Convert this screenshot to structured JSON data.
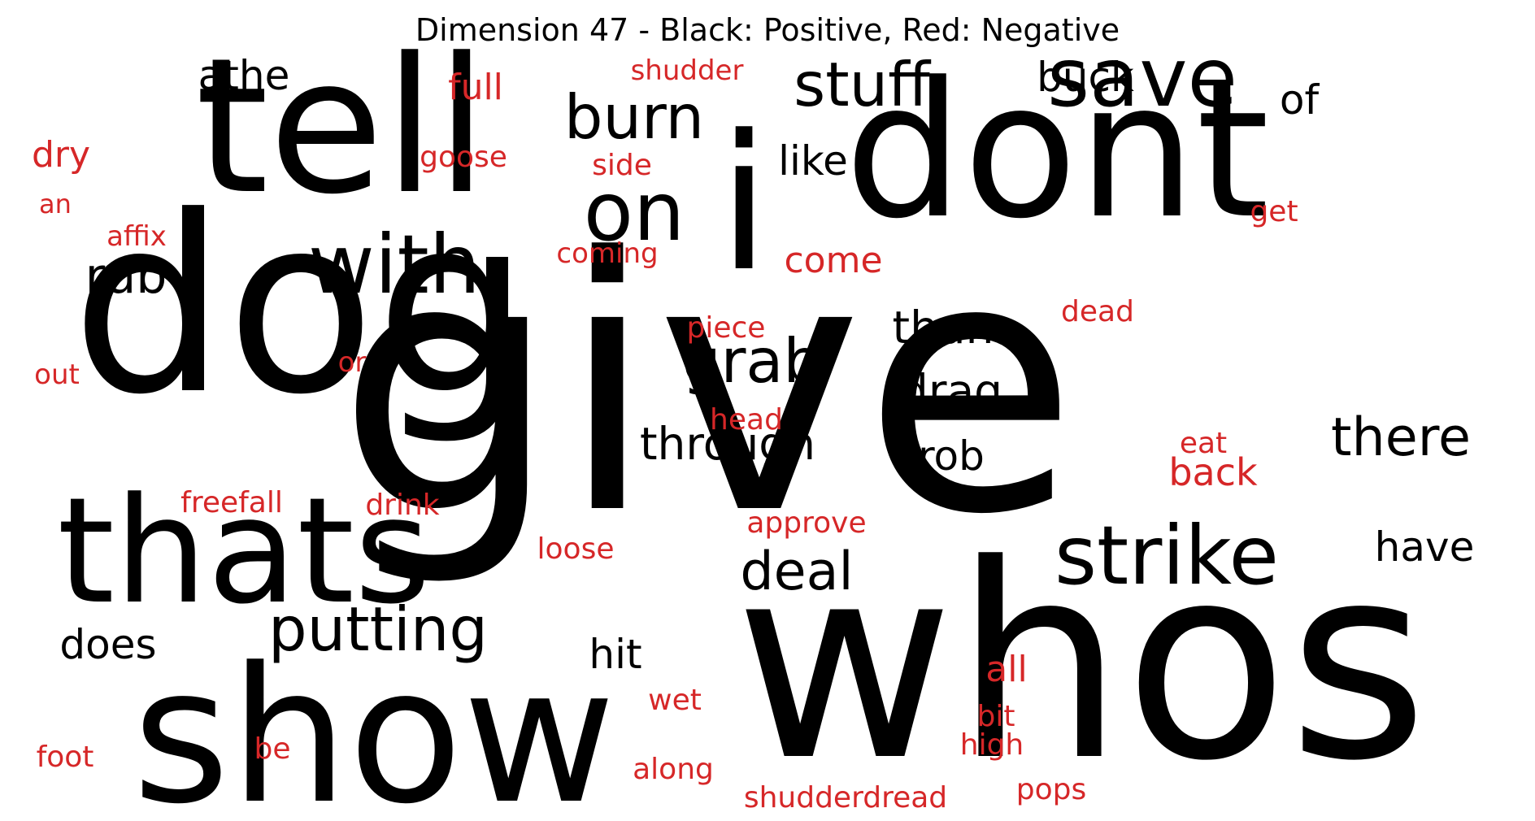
{
  "title": "Dimension 47 - Black: Positive, Red: Negative",
  "colors": {
    "positive": "#000000",
    "negative": "#d62728",
    "background": "#ffffff"
  },
  "words": [
    {
      "text": "give",
      "sign": "positive"
    },
    {
      "text": "dog",
      "sign": "positive"
    },
    {
      "text": "whos",
      "sign": "positive"
    },
    {
      "text": "dont",
      "sign": "positive"
    },
    {
      "text": "tell",
      "sign": "positive"
    },
    {
      "text": "show",
      "sign": "positive"
    },
    {
      "text": "i",
      "sign": "positive"
    },
    {
      "text": "thats",
      "sign": "positive"
    },
    {
      "text": "save",
      "sign": "positive"
    },
    {
      "text": "strike",
      "sign": "positive"
    },
    {
      "text": "with",
      "sign": "positive"
    },
    {
      "text": "on",
      "sign": "positive"
    },
    {
      "text": "putting",
      "sign": "positive"
    },
    {
      "text": "burn",
      "sign": "positive"
    },
    {
      "text": "stuff",
      "sign": "positive"
    },
    {
      "text": "grab",
      "sign": "positive"
    },
    {
      "text": "deal",
      "sign": "positive"
    },
    {
      "text": "there",
      "sign": "positive"
    },
    {
      "text": "through",
      "sign": "positive"
    },
    {
      "text": "rub",
      "sign": "positive"
    },
    {
      "text": "than",
      "sign": "positive"
    },
    {
      "text": "drag",
      "sign": "positive"
    },
    {
      "text": "athe",
      "sign": "positive"
    },
    {
      "text": "buck",
      "sign": "positive"
    },
    {
      "text": "like",
      "sign": "positive"
    },
    {
      "text": "of",
      "sign": "positive"
    },
    {
      "text": "rob",
      "sign": "positive"
    },
    {
      "text": "hit",
      "sign": "positive"
    },
    {
      "text": "does",
      "sign": "positive"
    },
    {
      "text": "have",
      "sign": "positive"
    },
    {
      "text": "full",
      "sign": "negative"
    },
    {
      "text": "shudder",
      "sign": "negative"
    },
    {
      "text": "dry",
      "sign": "negative"
    },
    {
      "text": "goose",
      "sign": "negative"
    },
    {
      "text": "side",
      "sign": "negative"
    },
    {
      "text": "an",
      "sign": "negative"
    },
    {
      "text": "affix",
      "sign": "negative"
    },
    {
      "text": "coming",
      "sign": "negative"
    },
    {
      "text": "come",
      "sign": "negative"
    },
    {
      "text": "get",
      "sign": "negative"
    },
    {
      "text": "dead",
      "sign": "negative"
    },
    {
      "text": "piece",
      "sign": "negative"
    },
    {
      "text": "or",
      "sign": "negative"
    },
    {
      "text": "out",
      "sign": "negative"
    },
    {
      "text": "head",
      "sign": "negative"
    },
    {
      "text": "eat",
      "sign": "negative"
    },
    {
      "text": "back",
      "sign": "negative"
    },
    {
      "text": "freefall",
      "sign": "negative"
    },
    {
      "text": "drink",
      "sign": "negative"
    },
    {
      "text": "approve",
      "sign": "negative"
    },
    {
      "text": "loose",
      "sign": "negative"
    },
    {
      "text": "all",
      "sign": "negative"
    },
    {
      "text": "wet",
      "sign": "negative"
    },
    {
      "text": "bit",
      "sign": "negative"
    },
    {
      "text": "high",
      "sign": "negative"
    },
    {
      "text": "foot",
      "sign": "negative"
    },
    {
      "text": "be",
      "sign": "negative"
    },
    {
      "text": "along",
      "sign": "negative"
    },
    {
      "text": "pops",
      "sign": "negative"
    },
    {
      "text": "shudderdread",
      "sign": "negative"
    }
  ]
}
